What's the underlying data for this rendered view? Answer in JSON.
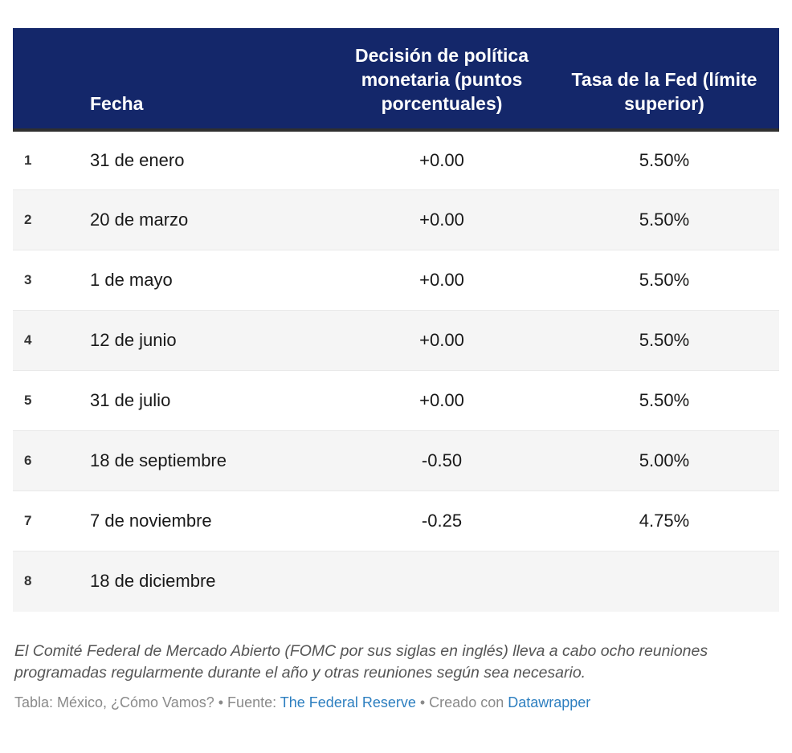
{
  "chart_data": {
    "type": "table",
    "columns": [
      "",
      "Fecha",
      "Decisión de política monetaria (puntos porcentuales)",
      "Tasa de la Fed (límite superior)"
    ],
    "rows": [
      {
        "num": "1",
        "fecha": "31 de enero",
        "decision": "+0.00",
        "tasa": "5.50%"
      },
      {
        "num": "2",
        "fecha": "20 de marzo",
        "decision": "+0.00",
        "tasa": "5.50%"
      },
      {
        "num": "3",
        "fecha": "1 de mayo",
        "decision": "+0.00",
        "tasa": "5.50%"
      },
      {
        "num": "4",
        "fecha": "12 de junio",
        "decision": "+0.00",
        "tasa": "5.50%"
      },
      {
        "num": "5",
        "fecha": "31 de julio",
        "decision": "+0.00",
        "tasa": "5.50%"
      },
      {
        "num": "6",
        "fecha": "18 de septiembre",
        "decision": "-0.50",
        "tasa": "5.00%"
      },
      {
        "num": "7",
        "fecha": "7 de noviembre",
        "decision": "-0.25",
        "tasa": "4.75%"
      },
      {
        "num": "8",
        "fecha": "18 de diciembre",
        "decision": "",
        "tasa": ""
      }
    ],
    "footnote": "El Comité Federal de Mercado Abierto (FOMC por sus siglas en inglés) lleva a cabo ocho reuniones programadas regularmente durante el año y otras reuniones según sea necesario.",
    "source": "The Federal Reserve",
    "credit": "Datawrapper"
  },
  "attribution": {
    "prefix": "Tabla: México, ¿Cómo Vamos? • Fuente: ",
    "source_link": "The Federal Reserve",
    "middle": " • Creado con ",
    "credit_link": "Datawrapper"
  },
  "colors": {
    "header_bg": "#14276a",
    "header_text": "#ffffff",
    "header_border": "#2f2f2f",
    "alt_row_bg": "#f5f5f5",
    "row_border": "#e9e9e9",
    "cell_text": "#191919",
    "footnote_text": "#555555",
    "attribution_text": "#8a8a8a",
    "link": "#2d7fc0"
  }
}
